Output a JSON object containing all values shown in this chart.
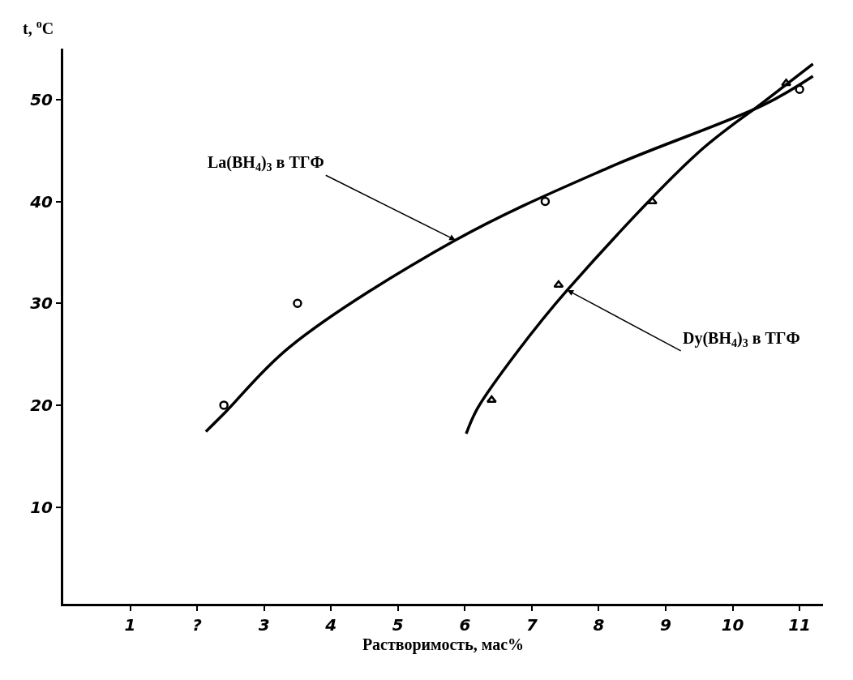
{
  "chart_data": {
    "type": "scatter",
    "xlabel": "Растворимость, мас%",
    "ylabel": "t, $^{o}$C",
    "xlim": [
      0,
      11.35
    ],
    "ylim": [
      0.5,
      55
    ],
    "xticks": [
      1,
      {
        "value": 2,
        "label": "?"
      },
      3,
      4,
      5,
      6,
      7,
      8,
      9,
      10,
      11
    ],
    "yticks": [
      10,
      20,
      30,
      40,
      50
    ],
    "series": [
      {
        "type": "line",
        "color": "#000000",
        "marker": "none",
        "x": [
          2.13,
          2.42,
          3.38,
          5.86,
          8.14,
          10.47,
          11.2
        ],
        "values": [
          17.4,
          19.3,
          25.7,
          36.2,
          43.3,
          49.5,
          52.3
        ]
      },
      {
        "type": "line",
        "color": "#000000",
        "marker": "none",
        "x": [
          6.02,
          6.19,
          6.79,
          7.53,
          9.47,
          10.47,
          11.2
        ],
        "values": [
          17.2,
          19.7,
          25.3,
          31.3,
          44.7,
          49.8,
          53.5
        ]
      },
      {
        "color": "#000000",
        "marker": "circle",
        "x": [
          2.4,
          3.5,
          7.2,
          11.0
        ],
        "values": [
          20,
          30,
          40,
          51
        ]
      },
      {
        "color": "#000000",
        "marker": "triangle",
        "x": [
          6.4,
          7.4,
          8.8,
          10.8
        ],
        "values": [
          20.5,
          31.8,
          40,
          51.6
        ]
      }
    ],
    "annotations": [
      {
        "text": "La(BH$_{4}$)$_{3}$ в ТГФ",
        "x": 5.86,
        "y": 36.2
      },
      {
        "text": "Dy(BH$_{4}$)$_{3}$ в ТГФ",
        "x": 7.53,
        "y": 31.3
      }
    ]
  }
}
